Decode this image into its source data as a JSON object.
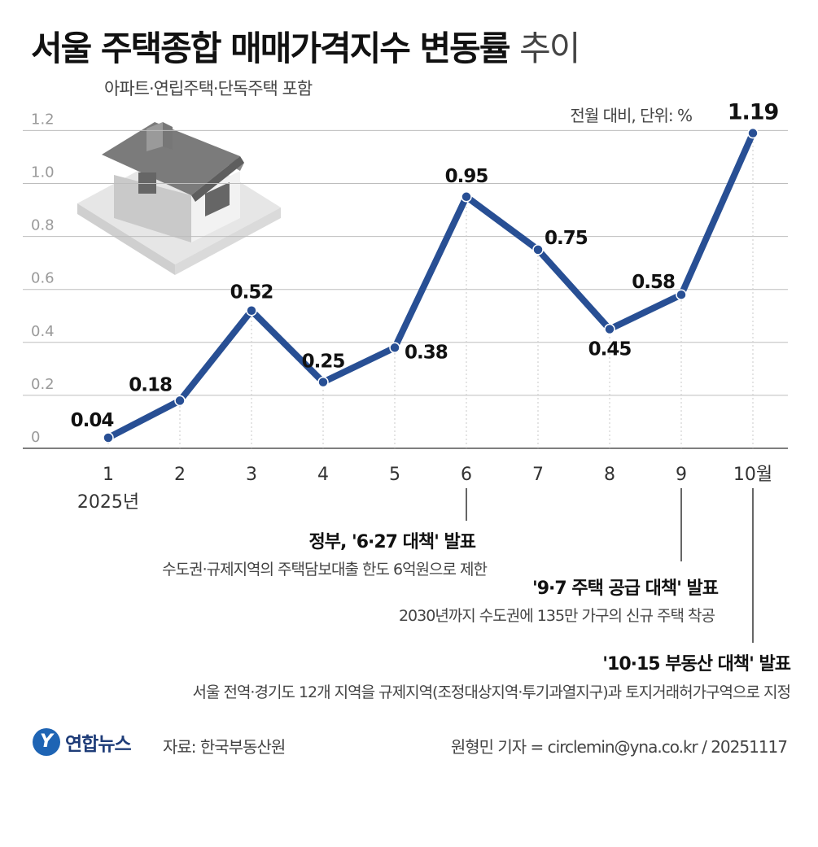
{
  "header": {
    "title_main": "서울 주택종합 매매가격지수 변동률",
    "title_light": "추이",
    "subtitle": "아파트·연립주택·단독주택 포함",
    "unit": "전월 대비, 단위: %"
  },
  "chart_data": {
    "type": "line",
    "x": [
      "1",
      "2",
      "3",
      "4",
      "5",
      "6",
      "7",
      "8",
      "9",
      "10월"
    ],
    "x_sublabel": "2025년",
    "values": [
      0.04,
      0.18,
      0.52,
      0.25,
      0.38,
      0.95,
      0.75,
      0.45,
      0.58,
      1.19
    ],
    "value_labels": [
      "0.04",
      "0.18",
      "0.52",
      "0.25",
      "0.38",
      "0.95",
      "0.75",
      "0.45",
      "0.58",
      "1.19"
    ],
    "y_ticks": [
      "0",
      "0.2",
      "0.4",
      "0.6",
      "0.8",
      "1.0",
      "1.2"
    ],
    "ylim": [
      0,
      1.2
    ],
    "grid": true,
    "line_color": "#284f94"
  },
  "annotations": [
    {
      "title": "정부, '6·27 대책' 발표",
      "desc": "수도권·규제지역의 주택담보대출 한도 6억원으로 제한"
    },
    {
      "title": "'9·7 주택 공급 대책' 발표",
      "desc": "2030년까지 수도권에 135만 가구의 신규 주택 착공"
    },
    {
      "title": "'10·15 부동산 대책' 발표",
      "desc": "서울 전역·경기도 12개 지역을 규제지역(조정대상지역·투기과열지구)과 토지거래허가구역으로 지정"
    }
  ],
  "footer": {
    "logo_mark": "Y",
    "logo_text": "연합뉴스",
    "source": "자료: 한국부동산원",
    "credit": "원형민 기자 = circlemin@yna.co.kr / 20251117"
  },
  "colors": {
    "line": "#284f94",
    "logo": "#1e64b4"
  },
  "icons": {
    "illustration": "house-icon"
  }
}
